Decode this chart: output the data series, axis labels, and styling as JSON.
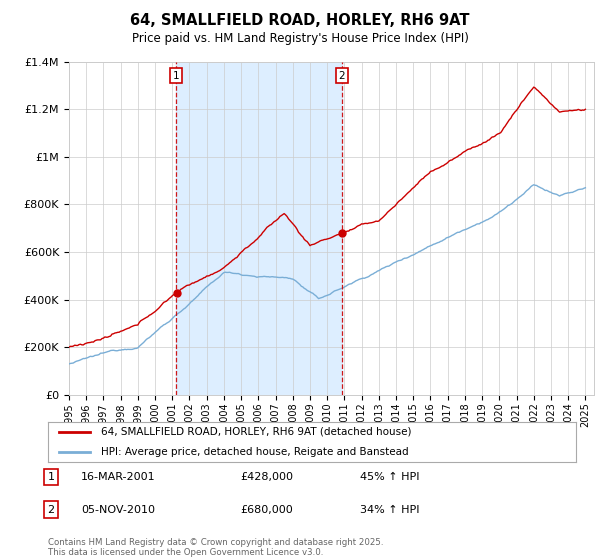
{
  "title": "64, SMALLFIELD ROAD, HORLEY, RH6 9AT",
  "subtitle": "Price paid vs. HM Land Registry's House Price Index (HPI)",
  "ylim": [
    0,
    1400000
  ],
  "yticks": [
    0,
    200000,
    400000,
    600000,
    800000,
    1000000,
    1200000,
    1400000
  ],
  "ytick_labels": [
    "£0",
    "£200K",
    "£400K",
    "£600K",
    "£800K",
    "£1M",
    "£1.2M",
    "£1.4M"
  ],
  "legend_line1": "64, SMALLFIELD ROAD, HORLEY, RH6 9AT (detached house)",
  "legend_line2": "HPI: Average price, detached house, Reigate and Banstead",
  "annotation1_num": "1",
  "annotation1_date": "16-MAR-2001",
  "annotation1_price": "£428,000",
  "annotation1_hpi": "45% ↑ HPI",
  "annotation2_num": "2",
  "annotation2_date": "05-NOV-2010",
  "annotation2_price": "£680,000",
  "annotation2_hpi": "34% ↑ HPI",
  "footer": "Contains HM Land Registry data © Crown copyright and database right 2025.\nThis data is licensed under the Open Government Licence v3.0.",
  "line1_color": "#cc0000",
  "line2_color": "#7aaed6",
  "vline_color": "#cc0000",
  "shade_color": "#ddeeff",
  "background_color": "#ffffff",
  "grid_color": "#cccccc",
  "sale1_year": 2001.21,
  "sale2_year": 2010.85,
  "sale1_price": 428000,
  "sale2_price": 680000
}
